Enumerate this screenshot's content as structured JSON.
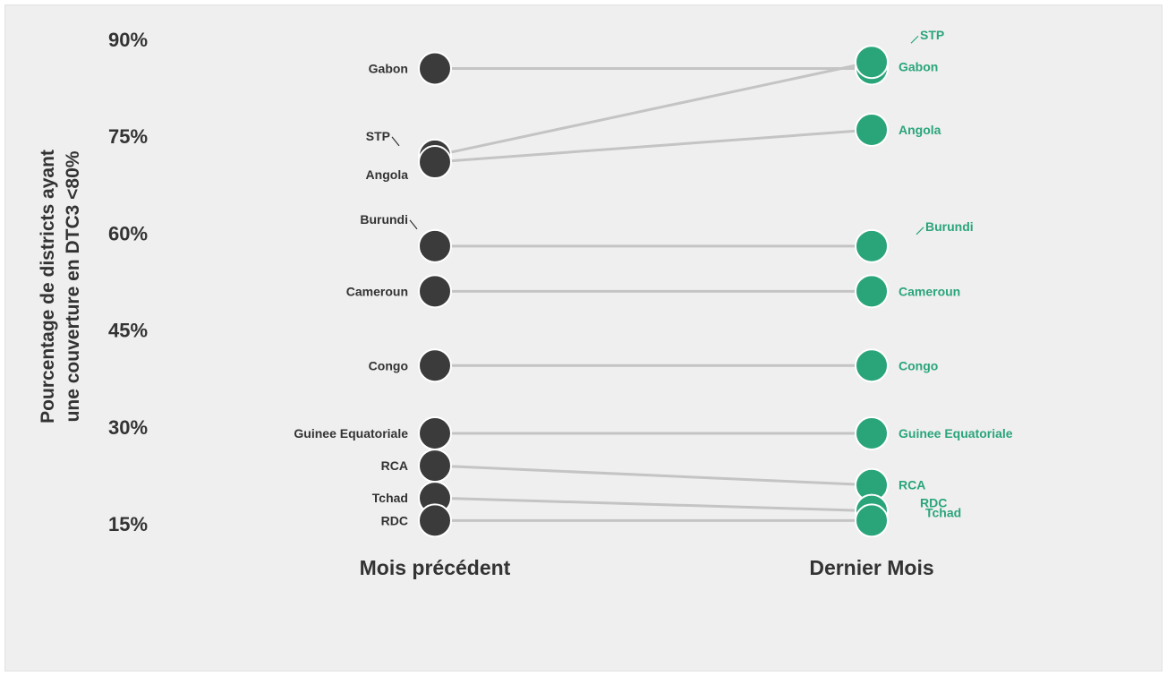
{
  "chart_data": {
    "type": "slope",
    "ylabel_lines": [
      "Pourcentage de districts ayant",
      "une couverture en DTC3 <80%"
    ],
    "yticks": [
      "90%",
      "75%",
      "60%",
      "45%",
      "30%",
      "15%"
    ],
    "ytick_values": [
      90,
      75,
      60,
      45,
      30,
      15
    ],
    "ylim": [
      12,
      92
    ],
    "columns": [
      "Mois précédent",
      "Dernier Mois"
    ],
    "colors": {
      "previous": "#3b3b3b",
      "latest": "#2aa57a",
      "line": "#c4c4c4",
      "text_dark": "#333333"
    },
    "series": [
      {
        "name": "Gabon",
        "previous": 85.5,
        "latest": 85.5
      },
      {
        "name": "STP",
        "previous": 72,
        "latest": 86.5
      },
      {
        "name": "Angola",
        "previous": 71,
        "latest": 76
      },
      {
        "name": "Burundi",
        "previous": 58,
        "latest": 58
      },
      {
        "name": "Cameroun",
        "previous": 51,
        "latest": 51
      },
      {
        "name": "Congo",
        "previous": 39.5,
        "latest": 39.5
      },
      {
        "name": "Guinee Equatoriale",
        "previous": 29,
        "latest": 29
      },
      {
        "name": "RCA",
        "previous": 24,
        "latest": 21
      },
      {
        "name": "Tchad",
        "previous": 19,
        "latest": 17
      },
      {
        "name": "RDC",
        "previous": 15.5,
        "latest": 15.5
      }
    ]
  }
}
